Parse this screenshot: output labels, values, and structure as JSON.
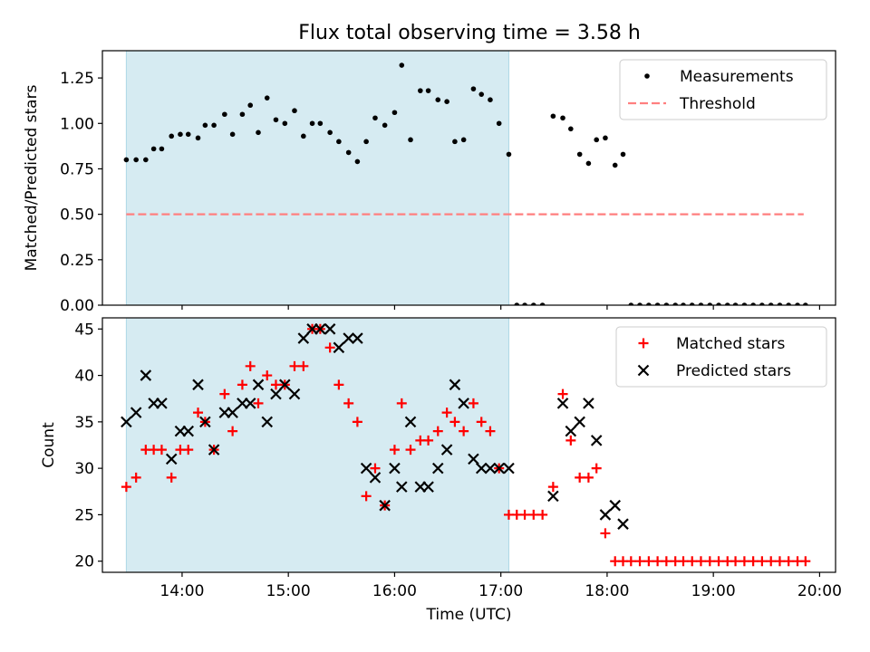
{
  "title": "Flux total observing time = 3.58 h",
  "colors": {
    "highlight": "#add8e6",
    "measurement": "#000000",
    "threshold": "#ff7f7f",
    "matched": "#ff0000",
    "predicted": "#000000"
  },
  "chart_data": [
    {
      "type": "scatter",
      "name": "ratio-panel",
      "ylabel": "Matched/Predicted stars",
      "xlabel": "",
      "xlim": [
        13.25,
        20.15
      ],
      "ylim": [
        0.0,
        1.4
      ],
      "yticks": [
        0.0,
        0.25,
        0.5,
        0.75,
        1.0,
        1.25
      ],
      "ytick_labels": [
        "0.00",
        "0.25",
        "0.50",
        "0.75",
        "1.00",
        "1.25"
      ],
      "xticks": [
        14,
        15,
        16,
        17,
        18,
        19,
        20
      ],
      "highlight_span": [
        13.475,
        17.075
      ],
      "legend": {
        "placement": "top-right",
        "entries": [
          {
            "label": "Measurements",
            "marker": "dot"
          },
          {
            "label": "Threshold",
            "marker": "dashed-line"
          }
        ]
      },
      "threshold": {
        "name": "Threshold",
        "y": 0.5,
        "x_range": [
          13.475,
          19.85
        ]
      },
      "series": [
        {
          "name": "Measurements",
          "x": [
            13.475,
            13.567,
            13.658,
            13.733,
            13.808,
            13.9,
            13.983,
            14.058,
            14.15,
            14.217,
            14.3,
            14.4,
            14.475,
            14.567,
            14.642,
            14.717,
            14.8,
            14.883,
            14.967,
            15.058,
            15.142,
            15.225,
            15.3,
            15.392,
            15.475,
            15.567,
            15.65,
            15.733,
            15.817,
            15.908,
            16.0,
            16.067,
            16.15,
            16.242,
            16.317,
            16.408,
            16.492,
            16.567,
            16.65,
            16.742,
            16.817,
            16.9,
            16.983,
            17.075,
            17.15,
            17.225,
            17.308,
            17.392,
            17.492,
            17.583,
            17.658,
            17.742,
            17.825,
            17.9,
            17.983,
            18.075,
            18.15,
            18.225,
            18.308,
            18.392,
            18.475,
            18.558,
            18.642,
            18.717,
            18.8,
            18.883,
            18.967,
            19.05,
            19.133,
            19.208,
            19.292,
            19.375,
            19.458,
            19.542,
            19.625,
            19.708,
            19.792,
            19.867
          ],
          "y": [
            0.8,
            0.8,
            0.8,
            0.86,
            0.86,
            0.93,
            0.94,
            0.94,
            0.92,
            0.99,
            0.99,
            1.05,
            0.94,
            1.05,
            1.1,
            0.95,
            1.14,
            1.02,
            1.0,
            1.07,
            0.93,
            1.0,
            1.0,
            0.95,
            0.9,
            0.84,
            0.79,
            0.9,
            1.03,
            0.99,
            1.06,
            1.32,
            0.91,
            1.18,
            1.18,
            1.13,
            1.12,
            0.9,
            0.91,
            1.19,
            1.16,
            1.13,
            1.0,
            0.83,
            0.0,
            0.0,
            0.0,
            0.0,
            1.04,
            1.03,
            0.97,
            0.83,
            0.78,
            0.91,
            0.92,
            0.77,
            0.83,
            0.0,
            0.0,
            0.0,
            0.0,
            0.0,
            0.0,
            0.0,
            0.0,
            0.0,
            0.0,
            0.0,
            0.0,
            0.0,
            0.0,
            0.0,
            0.0,
            0.0,
            0.0,
            0.0,
            0.0,
            0.0
          ]
        }
      ]
    },
    {
      "type": "scatter",
      "name": "count-panel",
      "ylabel": "Count",
      "xlabel": "Time (UTC)",
      "xlim": [
        13.25,
        20.15
      ],
      "ylim": [
        18.8,
        46.2
      ],
      "yticks": [
        20,
        25,
        30,
        35,
        40,
        45
      ],
      "ytick_labels": [
        "20",
        "25",
        "30",
        "35",
        "40",
        "45"
      ],
      "xticks": [
        14,
        15,
        16,
        17,
        18,
        19,
        20
      ],
      "xtick_labels": [
        "14:00",
        "15:00",
        "16:00",
        "17:00",
        "18:00",
        "19:00",
        "20:00"
      ],
      "highlight_span": [
        13.475,
        17.075
      ],
      "legend": {
        "placement": "top-right",
        "entries": [
          {
            "label": "Matched stars",
            "marker": "plus"
          },
          {
            "label": "Predicted stars",
            "marker": "cross"
          }
        ]
      },
      "series": [
        {
          "name": "Matched stars",
          "marker": "plus",
          "x": [
            13.475,
            13.567,
            13.658,
            13.733,
            13.808,
            13.9,
            13.983,
            14.058,
            14.15,
            14.217,
            14.3,
            14.4,
            14.475,
            14.567,
            14.642,
            14.717,
            14.8,
            14.883,
            14.967,
            15.058,
            15.142,
            15.225,
            15.3,
            15.392,
            15.475,
            15.567,
            15.65,
            15.733,
            15.817,
            15.908,
            16.0,
            16.067,
            16.15,
            16.242,
            16.317,
            16.408,
            16.492,
            16.567,
            16.65,
            16.742,
            16.817,
            16.9,
            16.983,
            17.075,
            17.15,
            17.225,
            17.308,
            17.392,
            17.492,
            17.583,
            17.658,
            17.742,
            17.825,
            17.9,
            17.983,
            18.075,
            18.15,
            18.225,
            18.308,
            18.392,
            18.475,
            18.558,
            18.642,
            18.717,
            18.8,
            18.883,
            18.967,
            19.05,
            19.133,
            19.208,
            19.292,
            19.375,
            19.458,
            19.542,
            19.625,
            19.708,
            19.792,
            19.867
          ],
          "y": [
            28,
            29,
            32,
            32,
            32,
            29,
            32,
            32,
            36,
            35,
            32,
            38,
            34,
            39,
            41,
            37,
            40,
            39,
            39,
            41,
            41,
            45,
            45,
            43,
            39,
            37,
            35,
            27,
            30,
            26,
            32,
            37,
            32,
            33,
            33,
            34,
            36,
            35,
            34,
            37,
            35,
            34,
            30,
            25,
            25,
            25,
            25,
            25,
            28,
            38,
            33,
            29,
            29,
            30,
            23,
            20,
            20,
            20,
            20,
            20,
            20,
            20,
            20,
            20,
            20,
            20,
            20,
            20,
            20,
            20,
            20,
            20,
            20,
            20,
            20,
            20,
            20,
            20
          ]
        },
        {
          "name": "Predicted stars",
          "marker": "cross",
          "x": [
            13.475,
            13.567,
            13.658,
            13.733,
            13.808,
            13.9,
            13.983,
            14.058,
            14.15,
            14.217,
            14.3,
            14.4,
            14.475,
            14.567,
            14.642,
            14.717,
            14.8,
            14.883,
            14.967,
            15.058,
            15.142,
            15.225,
            15.3,
            15.392,
            15.475,
            15.567,
            15.65,
            15.733,
            15.817,
            15.908,
            16.0,
            16.067,
            16.15,
            16.242,
            16.317,
            16.408,
            16.492,
            16.567,
            16.65,
            16.742,
            16.817,
            16.9,
            16.983,
            17.075,
            17.492,
            17.583,
            17.658,
            17.742,
            17.825,
            17.9,
            17.983,
            18.075,
            18.15
          ],
          "y": [
            35,
            36,
            40,
            37,
            37,
            31,
            34,
            34,
            39,
            35,
            32,
            36,
            36,
            37,
            37,
            39,
            35,
            38,
            39,
            38,
            44,
            45,
            45,
            45,
            43,
            44,
            44,
            30,
            29,
            26,
            30,
            28,
            35,
            28,
            28,
            30,
            32,
            39,
            37,
            31,
            30,
            30,
            30,
            30,
            27,
            37,
            34,
            35,
            37,
            33,
            25,
            26,
            24
          ]
        }
      ]
    }
  ]
}
